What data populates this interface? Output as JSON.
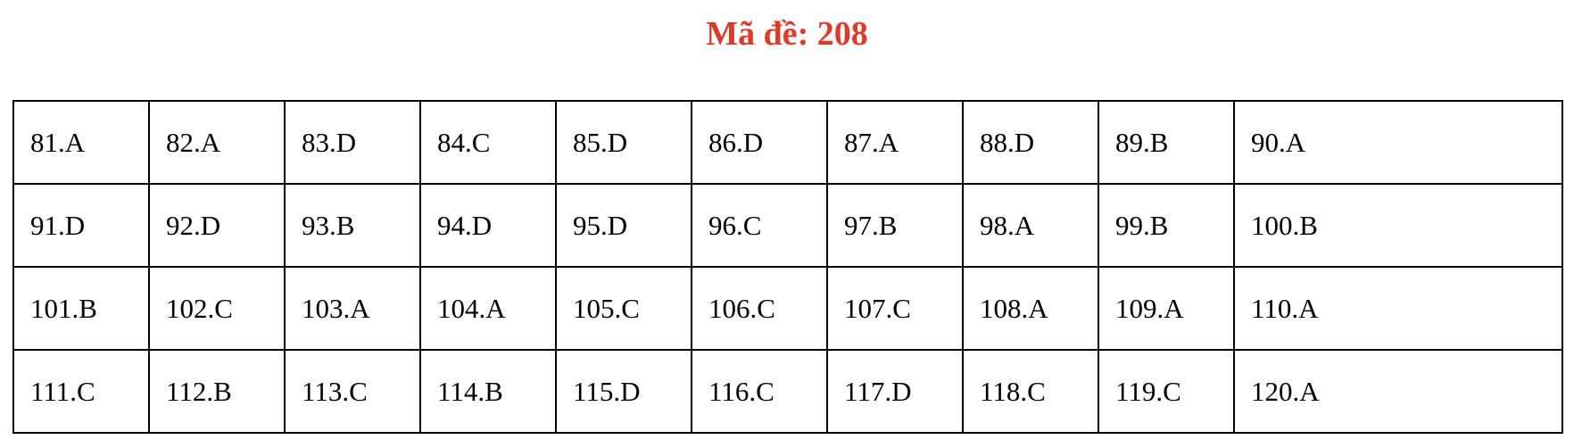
{
  "title": {
    "label": "Mã đề: 208",
    "color": "#e03926"
  },
  "answer_table": {
    "rows": [
      [
        "81.A",
        "82.A",
        "83.D",
        "84.C",
        "85.D",
        "86.D",
        "87.A",
        "88.D",
        "89.B",
        "90.A"
      ],
      [
        "91.D",
        "92.D",
        "93.B",
        "94.D",
        "95.D",
        "96.C",
        "97.B",
        "98.A",
        "99.B",
        "100.B"
      ],
      [
        "101.B",
        "102.C",
        "103.A",
        "104.A",
        "105.C",
        "106.C",
        "107.C",
        "108.A",
        "109.A",
        "110.A"
      ],
      [
        "111.C",
        "112.B",
        "113.C",
        "114.B",
        "115.D",
        "116.C",
        "117.D",
        "118.C",
        "119.C",
        "120.A"
      ]
    ]
  }
}
